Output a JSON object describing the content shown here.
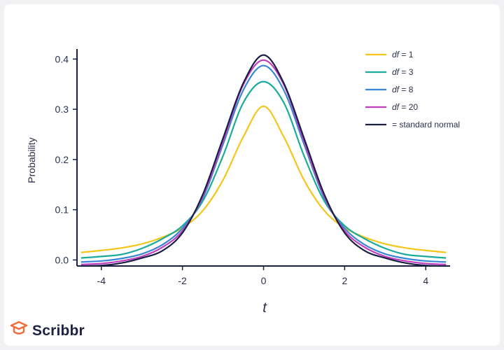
{
  "brand": {
    "name": "Scribbr",
    "logo_icon": "graduation-cap-icon",
    "logo_color": "#f26b3a"
  },
  "chart_data": {
    "type": "line",
    "title": "",
    "xlabel": "t",
    "ylabel": "Probability",
    "xlim": [
      -4.6,
      4.6
    ],
    "ylim": [
      -0.012,
      0.42
    ],
    "xticks": [
      -4,
      -2,
      0,
      2,
      4
    ],
    "xtick_labels": [
      "-4",
      "-2",
      "0",
      "2",
      "4"
    ],
    "yticks": [
      0.0,
      0.1,
      0.2,
      0.3,
      0.4
    ],
    "ytick_labels": [
      "0.0",
      "0.1",
      "0.2",
      "0.3",
      "0.4"
    ],
    "grid": false,
    "legend_position": "top-right",
    "x": [
      -4.5,
      -4.0,
      -3.5,
      -3.0,
      -2.5,
      -2.0,
      -1.5,
      -1.0,
      -0.5,
      0.0,
      0.5,
      1.0,
      1.5,
      2.0,
      2.5,
      3.0,
      3.5,
      4.0,
      4.5
    ],
    "series": [
      {
        "name": "df = 1",
        "name_italic": "df",
        "name_rest": " = 1",
        "color": "#f5c518",
        "values": [
          0.015,
          0.019,
          0.024,
          0.032,
          0.045,
          0.064,
          0.098,
          0.159,
          0.245,
          0.306,
          0.245,
          0.159,
          0.098,
          0.064,
          0.045,
          0.032,
          0.024,
          0.019,
          0.015
        ]
      },
      {
        "name": "df = 3",
        "name_italic": "df",
        "name_rest": " = 3",
        "color": "#1aab9b",
        "values": [
          0.004,
          0.007,
          0.011,
          0.023,
          0.042,
          0.068,
          0.117,
          0.207,
          0.313,
          0.355,
          0.313,
          0.207,
          0.117,
          0.068,
          0.042,
          0.023,
          0.011,
          0.007,
          0.004
        ]
      },
      {
        "name": "df = 8",
        "name_italic": "df",
        "name_rest": " = 8",
        "color": "#3a86d6",
        "values": [
          -0.004,
          -0.002,
          0.003,
          0.012,
          0.03,
          0.063,
          0.123,
          0.23,
          0.338,
          0.387,
          0.338,
          0.23,
          0.123,
          0.063,
          0.03,
          0.012,
          0.003,
          -0.002,
          -0.004
        ]
      },
      {
        "name": "df = 20",
        "name_italic": "df",
        "name_rest": " = 20",
        "color": "#c13dbd",
        "values": [
          -0.009,
          -0.007,
          -0.002,
          0.007,
          0.025,
          0.058,
          0.126,
          0.236,
          0.349,
          0.398,
          0.349,
          0.236,
          0.126,
          0.058,
          0.025,
          0.007,
          -0.002,
          -0.007,
          -0.009
        ]
      },
      {
        "name": "= standard normal",
        "name_italic": "",
        "name_rest": "= standard normal",
        "color": "#1c1f44",
        "values": [
          -0.012,
          -0.011,
          -0.006,
          0.004,
          0.018,
          0.054,
          0.13,
          0.242,
          0.352,
          0.408,
          0.352,
          0.242,
          0.13,
          0.054,
          0.018,
          0.004,
          -0.006,
          -0.011,
          -0.012
        ]
      }
    ]
  }
}
